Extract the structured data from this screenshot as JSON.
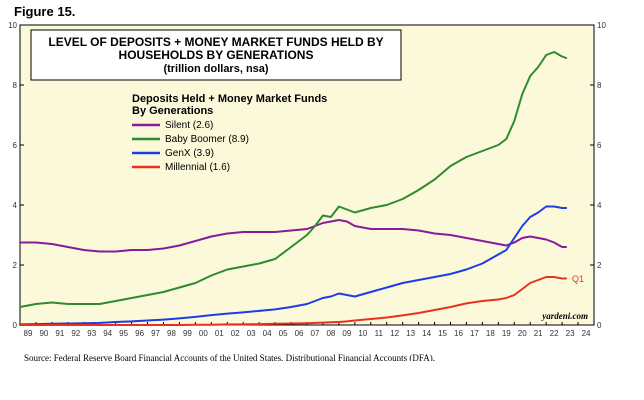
{
  "figure_label": "Figure 15.",
  "source": "Source: Federal Reserve Board Financial Accounts of the United States, Distributional Financial Accounts (DFA).",
  "credit": "yardeni.com",
  "chart_data": {
    "type": "line",
    "title": [
      "LEVEL OF DEPOSITS + MONEY MARKET FUNDS HELD BY",
      "HOUSEHOLDS BY GENERATIONS"
    ],
    "subtitle": "(trillion dollars, nsa)",
    "legend_title": [
      "Deposits Held + Money Market Funds",
      "By Generations"
    ],
    "legend_position": "upper-left",
    "y_ticks": [
      0,
      2,
      4,
      6,
      8,
      10
    ],
    "ylim": [
      0,
      10
    ],
    "xlim": [
      1989,
      2025
    ],
    "x_tick_labels": [
      "89",
      "90",
      "91",
      "92",
      "93",
      "94",
      "95",
      "96",
      "97",
      "98",
      "99",
      "00",
      "01",
      "02",
      "03",
      "04",
      "05",
      "06",
      "07",
      "08",
      "09",
      "10",
      "11",
      "12",
      "13",
      "14",
      "15",
      "16",
      "17",
      "18",
      "19",
      "20",
      "21",
      "22",
      "23",
      "24"
    ],
    "annotation": "Q1",
    "series": [
      {
        "name": "Silent (2.6)",
        "color": "#8B1A9A",
        "x": [
          1989.0,
          1990.0,
          1991.0,
          1992.0,
          1993.0,
          1994.0,
          1995.0,
          1996.0,
          1997.0,
          1998.0,
          1999.0,
          2000.0,
          2001.0,
          2002.0,
          2003.0,
          2004.0,
          2005.0,
          2006.0,
          2007.0,
          2007.5,
          2008.0,
          2008.5,
          2009.0,
          2009.5,
          2010.0,
          2011.0,
          2012.0,
          2013.0,
          2014.0,
          2015.0,
          2016.0,
          2017.0,
          2018.0,
          2019.0,
          2019.5,
          2020.0,
          2020.5,
          2021.0,
          2021.5,
          2022.0,
          2022.5,
          2023.0,
          2023.25
        ],
        "y": [
          2.75,
          2.75,
          2.7,
          2.6,
          2.5,
          2.45,
          2.45,
          2.5,
          2.5,
          2.55,
          2.65,
          2.8,
          2.95,
          3.05,
          3.1,
          3.1,
          3.1,
          3.15,
          3.2,
          3.3,
          3.4,
          3.45,
          3.5,
          3.45,
          3.3,
          3.2,
          3.2,
          3.2,
          3.15,
          3.05,
          3.0,
          2.9,
          2.8,
          2.7,
          2.65,
          2.75,
          2.9,
          2.95,
          2.9,
          2.85,
          2.75,
          2.6,
          2.6
        ]
      },
      {
        "name": "Baby Boomer (8.9)",
        "color": "#2E8B2E",
        "x": [
          1989.0,
          1990.0,
          1991.0,
          1992.0,
          1993.0,
          1994.0,
          1995.0,
          1996.0,
          1997.0,
          1998.0,
          1999.0,
          2000.0,
          2001.0,
          2002.0,
          2003.0,
          2004.0,
          2005.0,
          2006.0,
          2007.0,
          2007.5,
          2008.0,
          2008.5,
          2009.0,
          2009.5,
          2010.0,
          2011.0,
          2012.0,
          2013.0,
          2014.0,
          2015.0,
          2016.0,
          2017.0,
          2018.0,
          2019.0,
          2019.5,
          2020.0,
          2020.5,
          2021.0,
          2021.5,
          2022.0,
          2022.5,
          2023.0,
          2023.25
        ],
        "y": [
          0.6,
          0.7,
          0.75,
          0.7,
          0.7,
          0.7,
          0.8,
          0.9,
          1.0,
          1.1,
          1.25,
          1.4,
          1.65,
          1.85,
          1.95,
          2.05,
          2.2,
          2.6,
          3.0,
          3.3,
          3.65,
          3.6,
          3.95,
          3.85,
          3.75,
          3.9,
          4.0,
          4.2,
          4.5,
          4.85,
          5.3,
          5.6,
          5.8,
          6.0,
          6.2,
          6.8,
          7.7,
          8.3,
          8.6,
          9.0,
          9.1,
          8.95,
          8.9
        ]
      },
      {
        "name": "GenX (3.9)",
        "color": "#1E3CE6",
        "x": [
          1989.0,
          1990.0,
          1991.0,
          1992.0,
          1993.0,
          1994.0,
          1995.0,
          1996.0,
          1997.0,
          1998.0,
          1999.0,
          2000.0,
          2001.0,
          2002.0,
          2003.0,
          2004.0,
          2005.0,
          2006.0,
          2007.0,
          2007.5,
          2008.0,
          2008.5,
          2009.0,
          2009.5,
          2010.0,
          2011.0,
          2012.0,
          2013.0,
          2014.0,
          2015.0,
          2016.0,
          2017.0,
          2018.0,
          2019.0,
          2019.5,
          2020.0,
          2020.5,
          2021.0,
          2021.5,
          2022.0,
          2022.5,
          2023.0,
          2023.25
        ],
        "y": [
          0.02,
          0.03,
          0.04,
          0.05,
          0.06,
          0.07,
          0.1,
          0.12,
          0.15,
          0.18,
          0.22,
          0.27,
          0.33,
          0.38,
          0.42,
          0.47,
          0.52,
          0.6,
          0.7,
          0.8,
          0.9,
          0.95,
          1.05,
          1.0,
          0.95,
          1.1,
          1.25,
          1.4,
          1.5,
          1.6,
          1.7,
          1.85,
          2.05,
          2.35,
          2.5,
          2.9,
          3.3,
          3.6,
          3.75,
          3.95,
          3.95,
          3.9,
          3.9
        ]
      },
      {
        "name": "Millennial (1.6)",
        "color": "#E8321E",
        "x": [
          1989.0,
          1990.0,
          1991.0,
          1992.0,
          1993.0,
          1994.0,
          1995.0,
          1996.0,
          1997.0,
          1998.0,
          1999.0,
          2000.0,
          2001.0,
          2002.0,
          2003.0,
          2004.0,
          2005.0,
          2006.0,
          2007.0,
          2007.5,
          2008.0,
          2008.5,
          2009.0,
          2009.5,
          2010.0,
          2011.0,
          2012.0,
          2013.0,
          2014.0,
          2015.0,
          2016.0,
          2017.0,
          2018.0,
          2019.0,
          2019.5,
          2020.0,
          2020.5,
          2021.0,
          2021.5,
          2022.0,
          2022.5,
          2023.0,
          2023.25
        ],
        "y": [
          0.0,
          0.0,
          0.0,
          0.0,
          0.0,
          0.0,
          0.0,
          0.0,
          0.0,
          0.0,
          0.0,
          0.01,
          0.01,
          0.02,
          0.02,
          0.03,
          0.04,
          0.05,
          0.06,
          0.07,
          0.08,
          0.09,
          0.1,
          0.12,
          0.15,
          0.2,
          0.25,
          0.32,
          0.4,
          0.5,
          0.6,
          0.72,
          0.8,
          0.85,
          0.9,
          1.0,
          1.2,
          1.4,
          1.5,
          1.6,
          1.6,
          1.55,
          1.55
        ]
      }
    ]
  }
}
